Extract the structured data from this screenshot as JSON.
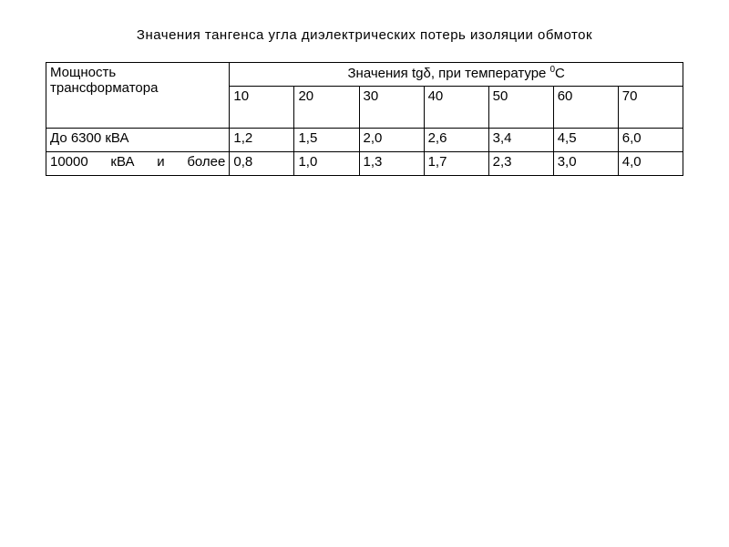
{
  "title": "Значения тангенса угла диэлектрических потерь изоляции обмоток",
  "table": {
    "header_col1_line1": "Мощность",
    "header_col1_line2": "трансформатора",
    "header_span_prefix": "Значения tgδ,  при температуре ",
    "header_span_sup": "0",
    "header_span_suffix": "С",
    "temps": [
      "10",
      "20",
      "30",
      "40",
      "50",
      "60",
      "70"
    ],
    "row1_label": "До 6300 кВА",
    "row1": [
      "1,2",
      "1,5",
      "2,0",
      "2,6",
      "3,4",
      "4,5",
      "6,0"
    ],
    "row2_label": "10000 кВА и более",
    "row2": [
      "0,8",
      "1,0",
      "1,3",
      "1,7",
      "2,3",
      "3,0",
      "4,0"
    ]
  },
  "style": {
    "background_color": "#ffffff",
    "text_color": "#000000",
    "border_color": "#000000",
    "font_size": 15,
    "title_font_size": 15
  }
}
